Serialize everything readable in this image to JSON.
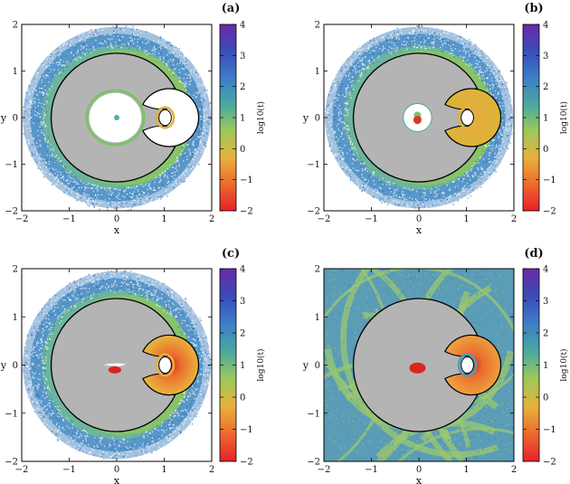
{
  "chart_data": [
    {
      "type": "heatmap",
      "panel": "(a)",
      "xlabel": "x",
      "ylabel": "y",
      "xlim": [
        -2,
        2
      ],
      "ylim": [
        -2,
        2
      ],
      "xticks": [
        -2,
        -1,
        0,
        1,
        2
      ],
      "yticks": [
        -2,
        -1,
        0,
        1,
        2
      ],
      "colorbar": {
        "label": "log10(t)",
        "range": [
          -2,
          4
        ],
        "ticks": [
          -2,
          -1,
          0,
          1,
          2,
          3,
          4
        ]
      },
      "features": {
        "inner_region_color": "#ffffff",
        "center_dot": "#5aa8a8",
        "inner_ring": "#7fc06a",
        "background": "white"
      }
    },
    {
      "type": "heatmap",
      "panel": "(b)",
      "xlabel": "x",
      "ylabel": "y",
      "xlim": [
        -2,
        2
      ],
      "ylim": [
        -2,
        2
      ],
      "xticks": [
        -2,
        -1,
        0,
        1,
        2
      ],
      "yticks": [
        -2,
        -1,
        0,
        1,
        2
      ],
      "colorbar": {
        "label": "log10(t)",
        "range": [
          -2,
          4
        ],
        "ticks": [
          -2,
          -1,
          0,
          1,
          2,
          3,
          4
        ]
      },
      "features": {
        "inner_region_color": "#dcb43a",
        "center_dot": "#d83a2a",
        "inner_ring": "#7fc06a",
        "background": "white"
      }
    },
    {
      "type": "heatmap",
      "panel": "(c)",
      "xlabel": "x",
      "ylabel": "y",
      "xlim": [
        -2,
        2
      ],
      "ylim": [
        -2,
        2
      ],
      "xticks": [
        -2,
        -1,
        0,
        1,
        2
      ],
      "yticks": [
        -2,
        -1,
        0,
        1,
        2
      ],
      "colorbar": {
        "label": "log10(t)",
        "range": [
          -2,
          4
        ],
        "ticks": [
          -2,
          -1,
          0,
          1,
          2,
          3,
          4
        ]
      },
      "features": {
        "inner_region_color": "#e8b23c",
        "center_dot": "#d8261c",
        "inner_ring": "#e8b23c",
        "background": "white"
      }
    },
    {
      "type": "heatmap",
      "panel": "(d)",
      "xlabel": "x",
      "ylabel": "y",
      "xlim": [
        -2,
        2
      ],
      "ylim": [
        -2,
        2
      ],
      "xticks": [
        -2,
        -1,
        0,
        1,
        2
      ],
      "yticks": [
        -2,
        -1,
        0,
        1,
        2
      ],
      "colorbar": {
        "label": "log10(t)",
        "range": [
          -2,
          4
        ],
        "ticks": [
          -2,
          -1,
          0,
          1,
          2,
          3,
          4
        ]
      },
      "features": {
        "inner_region_color": "#eca040",
        "center_dot": "#d8261c",
        "inner_ring": "#e8b23c",
        "background": "fill"
      }
    }
  ],
  "colormap": [
    "#e8202a",
    "#ec6a2e",
    "#e8b23c",
    "#9cc85a",
    "#4aa8a0",
    "#3c7ec8",
    "#3a4cb8",
    "#6a2aa8"
  ],
  "colors": {
    "forbidden_region": "#b4b4b4",
    "outer_blue": "#4b8fc4",
    "outer_green": "#86c36a"
  }
}
